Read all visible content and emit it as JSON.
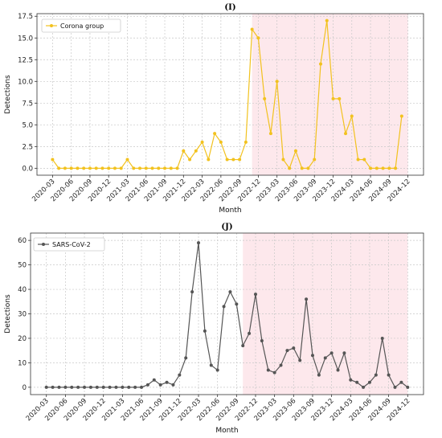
{
  "chart_data": [
    {
      "type": "line",
      "title": "(I)",
      "xlabel": "Month",
      "ylabel": "Detections",
      "ylim": [
        -0.8,
        17.8
      ],
      "yticks": [
        "0.0",
        "2.5",
        "5.0",
        "7.5",
        "10.0",
        "12.5",
        "15.0",
        "17.5"
      ],
      "ytick_values": [
        0,
        2.5,
        5,
        7.5,
        10,
        12.5,
        15,
        17.5
      ],
      "x_start": "2020-03",
      "xticks": [
        "2020-03",
        "2020-06",
        "2020-09",
        "2020-12",
        "2021-03",
        "2021-06",
        "2021-09",
        "2021-12",
        "2022-03",
        "2022-06",
        "2022-09",
        "2022-12",
        "2023-03",
        "2023-06",
        "2023-09",
        "2023-12",
        "2024-03",
        "2024-06",
        "2024-09",
        "2024-12"
      ],
      "grid": true,
      "legend_position": "top-left",
      "shaded_region": {
        "from": "2022-11",
        "to": "2024-12",
        "color": "#fde8ec"
      },
      "color": "#f2c21f",
      "series": [
        {
          "name": "Corona group",
          "values": [
            1,
            0,
            0,
            0,
            0,
            0,
            0,
            0,
            0,
            0,
            0,
            0,
            1,
            0,
            0,
            0,
            0,
            0,
            0,
            0,
            0,
            2,
            1,
            2,
            3,
            1,
            4,
            3,
            1,
            1,
            1,
            3,
            16,
            15,
            8,
            4,
            10,
            1,
            0,
            2,
            0,
            0,
            1,
            12,
            17,
            8,
            8,
            4,
            6,
            1,
            1,
            0,
            0,
            0,
            0,
            0,
            6
          ]
        }
      ]
    },
    {
      "type": "line",
      "title": "(J)",
      "xlabel": "Month",
      "ylabel": "Detections",
      "ylim": [
        -3,
        63
      ],
      "yticks": [
        "0",
        "10",
        "20",
        "30",
        "40",
        "50",
        "60"
      ],
      "ytick_values": [
        0,
        10,
        20,
        30,
        40,
        50,
        60
      ],
      "x_start": "2020-03",
      "xticks": [
        "2020-03",
        "2020-06",
        "2020-09",
        "2020-12",
        "2021-03",
        "2021-06",
        "2021-09",
        "2021-12",
        "2022-03",
        "2022-06",
        "2022-09",
        "2022-12",
        "2023-03",
        "2023-06",
        "2023-09",
        "2023-12",
        "2024-03",
        "2024-06",
        "2024-09",
        "2024-12"
      ],
      "grid": true,
      "legend_position": "top-left",
      "shaded_region": {
        "from": "2022-10",
        "to": "2024-12",
        "color": "#fde8ec"
      },
      "color": "#555555",
      "series": [
        {
          "name": "SARS-CoV-2",
          "values": [
            0,
            0,
            0,
            0,
            0,
            0,
            0,
            0,
            0,
            0,
            0,
            0,
            0,
            0,
            0,
            0,
            1,
            3,
            1,
            2,
            1,
            5,
            12,
            39,
            59,
            23,
            9,
            7,
            33,
            39,
            34,
            17,
            22,
            38,
            19,
            7,
            6,
            9,
            15,
            16,
            11,
            36,
            13,
            5,
            12,
            14,
            7,
            14,
            3,
            2,
            0,
            2,
            5,
            20,
            5,
            0,
            2,
            0
          ]
        }
      ]
    }
  ]
}
